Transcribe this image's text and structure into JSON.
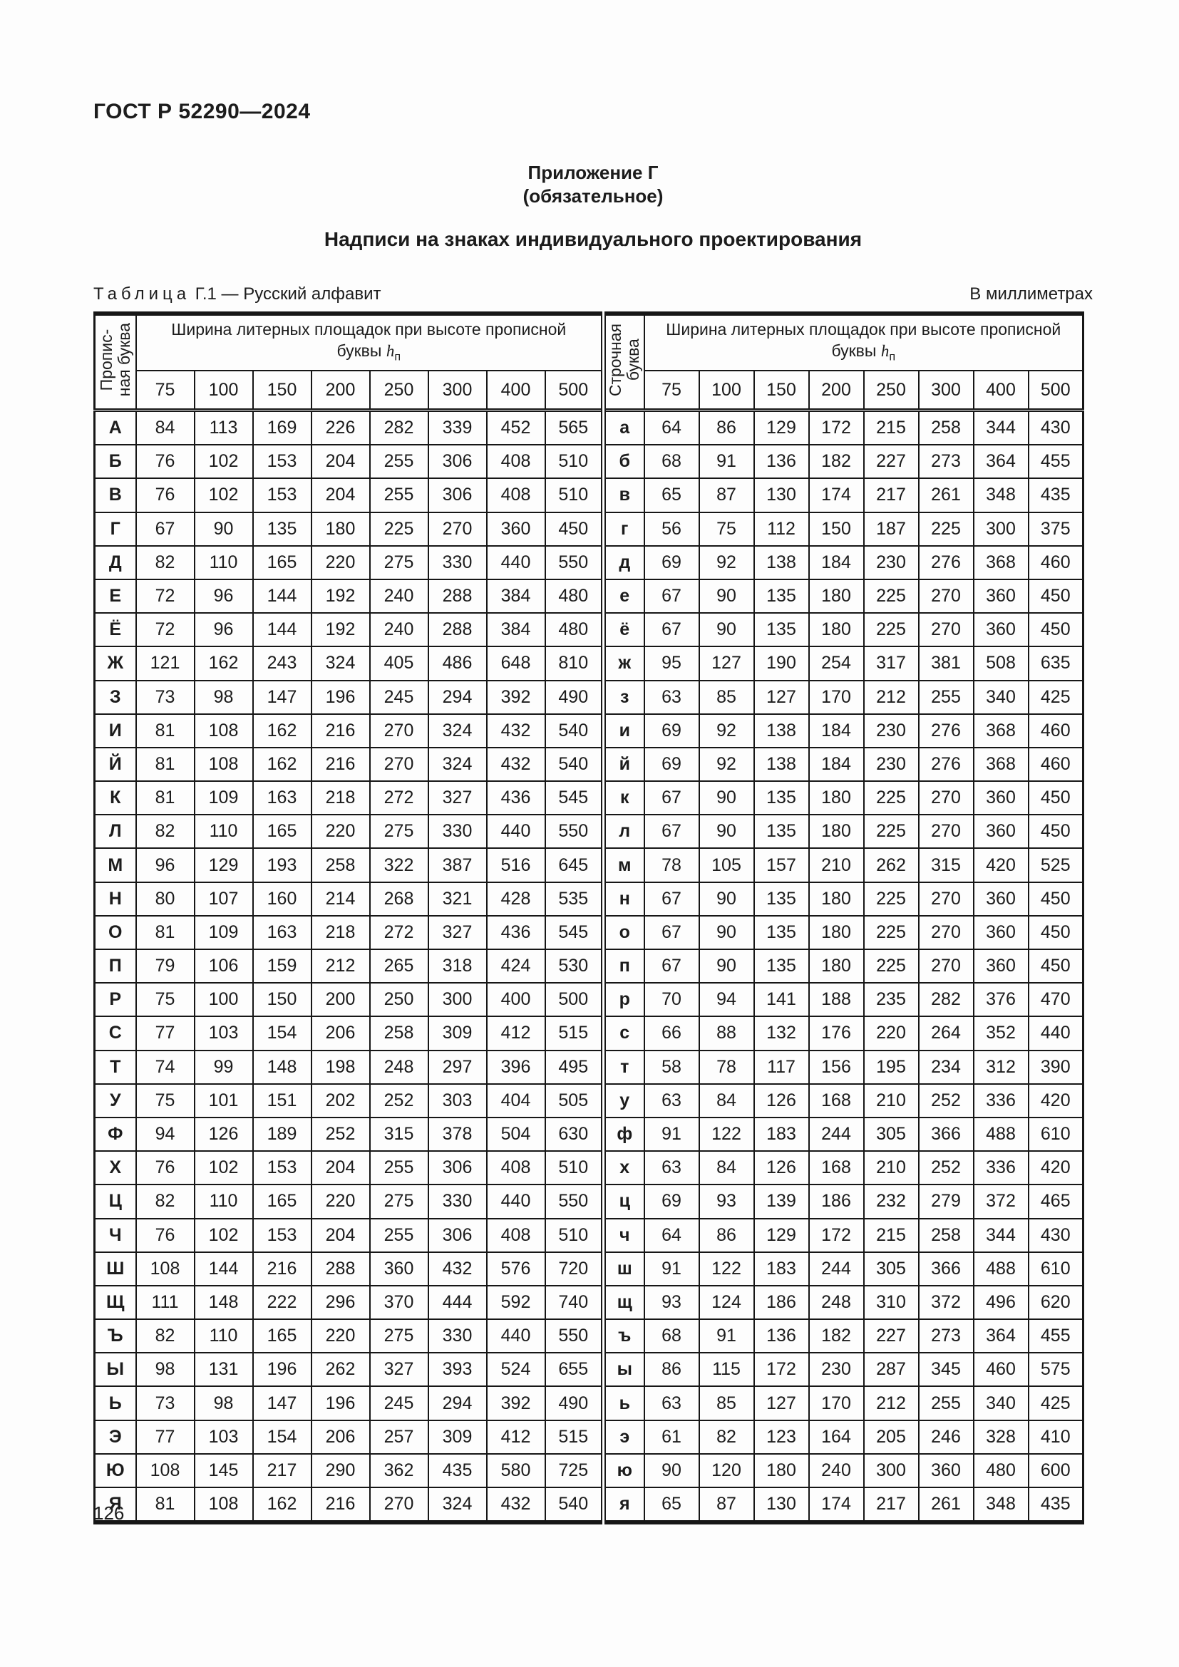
{
  "page": {
    "doc_code": "ГОСТ Р 52290—2024",
    "appendix_heading": "Приложение Г",
    "appendix_type": "(обязательное)",
    "section_title": "Надписи на знаках индивидуального проектирования",
    "page_number": "126"
  },
  "table": {
    "caption_label": "Таблица",
    "caption_number": " Г.1 — ",
    "caption_title": "Русский алфавит",
    "units_note": "В миллиметрах",
    "left_letter_header": "Пропис-\nная буква",
    "right_letter_header": "Строчная\nбуква",
    "width_header": {
      "line1": "Ширина литерных площадок при высоте прописной",
      "line2": "буквы",
      "symbol": "h",
      "subscript": "п"
    },
    "heights": [
      75,
      100,
      150,
      200,
      250,
      300,
      400,
      500
    ],
    "rows": [
      {
        "upper": "А",
        "upper_widths": [
          84,
          113,
          169,
          226,
          282,
          339,
          452,
          565
        ],
        "lower": "а",
        "lower_widths": [
          64,
          86,
          129,
          172,
          215,
          258,
          344,
          430
        ]
      },
      {
        "upper": "Б",
        "upper_widths": [
          76,
          102,
          153,
          204,
          255,
          306,
          408,
          510
        ],
        "lower": "б",
        "lower_widths": [
          68,
          91,
          136,
          182,
          227,
          273,
          364,
          455
        ]
      },
      {
        "upper": "В",
        "upper_widths": [
          76,
          102,
          153,
          204,
          255,
          306,
          408,
          510
        ],
        "lower": "в",
        "lower_widths": [
          65,
          87,
          130,
          174,
          217,
          261,
          348,
          435
        ]
      },
      {
        "upper": "Г",
        "upper_widths": [
          67,
          90,
          135,
          180,
          225,
          270,
          360,
          450
        ],
        "lower": "г",
        "lower_widths": [
          56,
          75,
          112,
          150,
          187,
          225,
          300,
          375
        ]
      },
      {
        "upper": "Д",
        "upper_widths": [
          82,
          110,
          165,
          220,
          275,
          330,
          440,
          550
        ],
        "lower": "д",
        "lower_widths": [
          69,
          92,
          138,
          184,
          230,
          276,
          368,
          460
        ]
      },
      {
        "upper": "Е",
        "upper_widths": [
          72,
          96,
          144,
          192,
          240,
          288,
          384,
          480
        ],
        "lower": "е",
        "lower_widths": [
          67,
          90,
          135,
          180,
          225,
          270,
          360,
          450
        ]
      },
      {
        "upper": "Ё",
        "upper_widths": [
          72,
          96,
          144,
          192,
          240,
          288,
          384,
          480
        ],
        "lower": "ё",
        "lower_widths": [
          67,
          90,
          135,
          180,
          225,
          270,
          360,
          450
        ]
      },
      {
        "upper": "Ж",
        "upper_widths": [
          121,
          162,
          243,
          324,
          405,
          486,
          648,
          810
        ],
        "lower": "ж",
        "lower_widths": [
          95,
          127,
          190,
          254,
          317,
          381,
          508,
          635
        ]
      },
      {
        "upper": "З",
        "upper_widths": [
          73,
          98,
          147,
          196,
          245,
          294,
          392,
          490
        ],
        "lower": "з",
        "lower_widths": [
          63,
          85,
          127,
          170,
          212,
          255,
          340,
          425
        ]
      },
      {
        "upper": "И",
        "upper_widths": [
          81,
          108,
          162,
          216,
          270,
          324,
          432,
          540
        ],
        "lower": "и",
        "lower_widths": [
          69,
          92,
          138,
          184,
          230,
          276,
          368,
          460
        ]
      },
      {
        "upper": "Й",
        "upper_widths": [
          81,
          108,
          162,
          216,
          270,
          324,
          432,
          540
        ],
        "lower": "й",
        "lower_widths": [
          69,
          92,
          138,
          184,
          230,
          276,
          368,
          460
        ]
      },
      {
        "upper": "К",
        "upper_widths": [
          81,
          109,
          163,
          218,
          272,
          327,
          436,
          545
        ],
        "lower": "к",
        "lower_widths": [
          67,
          90,
          135,
          180,
          225,
          270,
          360,
          450
        ]
      },
      {
        "upper": "Л",
        "upper_widths": [
          82,
          110,
          165,
          220,
          275,
          330,
          440,
          550
        ],
        "lower": "л",
        "lower_widths": [
          67,
          90,
          135,
          180,
          225,
          270,
          360,
          450
        ]
      },
      {
        "upper": "М",
        "upper_widths": [
          96,
          129,
          193,
          258,
          322,
          387,
          516,
          645
        ],
        "lower": "м",
        "lower_widths": [
          78,
          105,
          157,
          210,
          262,
          315,
          420,
          525
        ]
      },
      {
        "upper": "Н",
        "upper_widths": [
          80,
          107,
          160,
          214,
          268,
          321,
          428,
          535
        ],
        "lower": "н",
        "lower_widths": [
          67,
          90,
          135,
          180,
          225,
          270,
          360,
          450
        ]
      },
      {
        "upper": "О",
        "upper_widths": [
          81,
          109,
          163,
          218,
          272,
          327,
          436,
          545
        ],
        "lower": "о",
        "lower_widths": [
          67,
          90,
          135,
          180,
          225,
          270,
          360,
          450
        ]
      },
      {
        "upper": "П",
        "upper_widths": [
          79,
          106,
          159,
          212,
          265,
          318,
          424,
          530
        ],
        "lower": "п",
        "lower_widths": [
          67,
          90,
          135,
          180,
          225,
          270,
          360,
          450
        ]
      },
      {
        "upper": "Р",
        "upper_widths": [
          75,
          100,
          150,
          200,
          250,
          300,
          400,
          500
        ],
        "lower": "р",
        "lower_widths": [
          70,
          94,
          141,
          188,
          235,
          282,
          376,
          470
        ]
      },
      {
        "upper": "С",
        "upper_widths": [
          77,
          103,
          154,
          206,
          258,
          309,
          412,
          515
        ],
        "lower": "с",
        "lower_widths": [
          66,
          88,
          132,
          176,
          220,
          264,
          352,
          440
        ]
      },
      {
        "upper": "Т",
        "upper_widths": [
          74,
          99,
          148,
          198,
          248,
          297,
          396,
          495
        ],
        "lower": "т",
        "lower_widths": [
          58,
          78,
          117,
          156,
          195,
          234,
          312,
          390
        ]
      },
      {
        "upper": "У",
        "upper_widths": [
          75,
          101,
          151,
          202,
          252,
          303,
          404,
          505
        ],
        "lower": "у",
        "lower_widths": [
          63,
          84,
          126,
          168,
          210,
          252,
          336,
          420
        ]
      },
      {
        "upper": "Ф",
        "upper_widths": [
          94,
          126,
          189,
          252,
          315,
          378,
          504,
          630
        ],
        "lower": "ф",
        "lower_widths": [
          91,
          122,
          183,
          244,
          305,
          366,
          488,
          610
        ]
      },
      {
        "upper": "Х",
        "upper_widths": [
          76,
          102,
          153,
          204,
          255,
          306,
          408,
          510
        ],
        "lower": "х",
        "lower_widths": [
          63,
          84,
          126,
          168,
          210,
          252,
          336,
          420
        ]
      },
      {
        "upper": "Ц",
        "upper_widths": [
          82,
          110,
          165,
          220,
          275,
          330,
          440,
          550
        ],
        "lower": "ц",
        "lower_widths": [
          69,
          93,
          139,
          186,
          232,
          279,
          372,
          465
        ]
      },
      {
        "upper": "Ч",
        "upper_widths": [
          76,
          102,
          153,
          204,
          255,
          306,
          408,
          510
        ],
        "lower": "ч",
        "lower_widths": [
          64,
          86,
          129,
          172,
          215,
          258,
          344,
          430
        ]
      },
      {
        "upper": "Ш",
        "upper_widths": [
          108,
          144,
          216,
          288,
          360,
          432,
          576,
          720
        ],
        "lower": "ш",
        "lower_widths": [
          91,
          122,
          183,
          244,
          305,
          366,
          488,
          610
        ]
      },
      {
        "upper": "Щ",
        "upper_widths": [
          111,
          148,
          222,
          296,
          370,
          444,
          592,
          740
        ],
        "lower": "щ",
        "lower_widths": [
          93,
          124,
          186,
          248,
          310,
          372,
          496,
          620
        ]
      },
      {
        "upper": "Ъ",
        "upper_widths": [
          82,
          110,
          165,
          220,
          275,
          330,
          440,
          550
        ],
        "lower": "ъ",
        "lower_widths": [
          68,
          91,
          136,
          182,
          227,
          273,
          364,
          455
        ]
      },
      {
        "upper": "Ы",
        "upper_widths": [
          98,
          131,
          196,
          262,
          327,
          393,
          524,
          655
        ],
        "lower": "ы",
        "lower_widths": [
          86,
          115,
          172,
          230,
          287,
          345,
          460,
          575
        ]
      },
      {
        "upper": "Ь",
        "upper_widths": [
          73,
          98,
          147,
          196,
          245,
          294,
          392,
          490
        ],
        "lower": "ь",
        "lower_widths": [
          63,
          85,
          127,
          170,
          212,
          255,
          340,
          425
        ]
      },
      {
        "upper": "Э",
        "upper_widths": [
          77,
          103,
          154,
          206,
          257,
          309,
          412,
          515
        ],
        "lower": "э",
        "lower_widths": [
          61,
          82,
          123,
          164,
          205,
          246,
          328,
          410
        ]
      },
      {
        "upper": "Ю",
        "upper_widths": [
          108,
          145,
          217,
          290,
          362,
          435,
          580,
          725
        ],
        "lower": "ю",
        "lower_widths": [
          90,
          120,
          180,
          240,
          300,
          360,
          480,
          600
        ]
      },
      {
        "upper": "Я",
        "upper_widths": [
          81,
          108,
          162,
          216,
          270,
          324,
          432,
          540
        ],
        "lower": "я",
        "lower_widths": [
          65,
          87,
          130,
          174,
          217,
          261,
          348,
          435
        ]
      }
    ]
  }
}
